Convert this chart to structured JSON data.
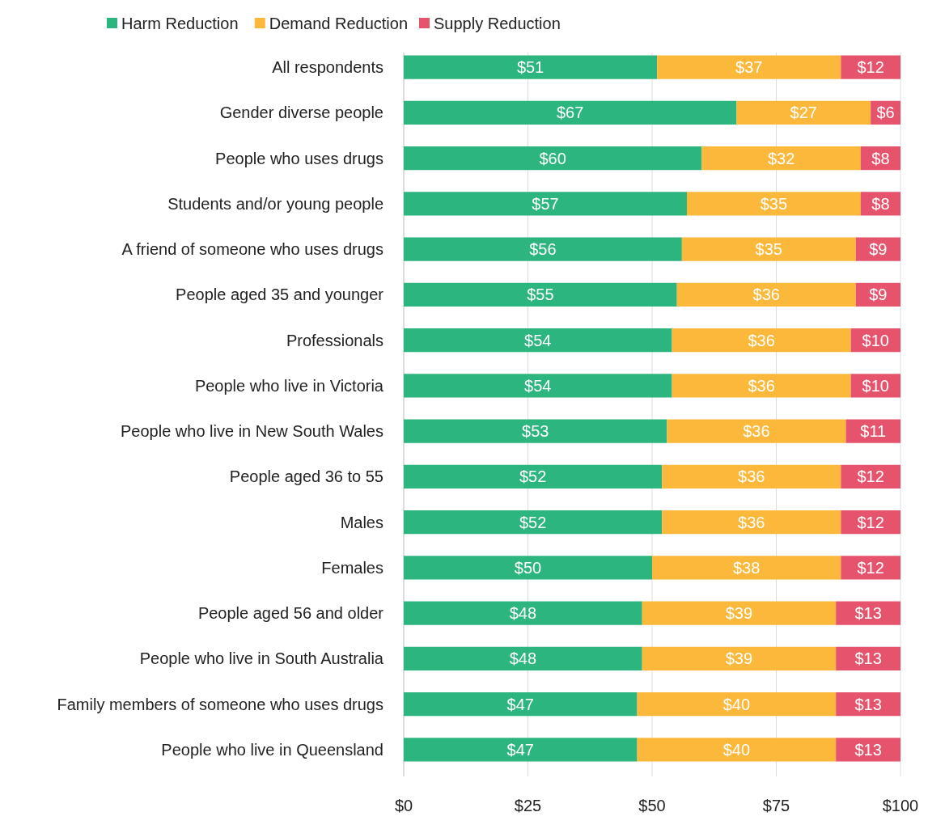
{
  "chart_data": {
    "type": "bar",
    "orientation": "horizontal",
    "stacked": true,
    "categories": [
      "All respondents",
      "Gender diverse people",
      "People who uses drugs",
      "Students and/or young people",
      "A friend of someone who uses drugs",
      "People aged 35 and younger",
      "Professionals",
      "People who live in Victoria",
      "People who live in New South Wales",
      "People aged 36 to 55",
      "Males",
      "Females",
      "People aged 56 and older",
      "People who live in South Australia",
      "Family members of someone who uses drugs",
      "People who live in Queensland"
    ],
    "series": [
      {
        "name": "Harm Reduction",
        "color": "#2db57f",
        "values": [
          51,
          67,
          60,
          57,
          56,
          55,
          54,
          54,
          53,
          52,
          52,
          50,
          48,
          48,
          47,
          47
        ],
        "value_labels": [
          "$51",
          "$67",
          "$60",
          "$57",
          "$56",
          "$55",
          "$54",
          "$54",
          "$53",
          "$52",
          "$52",
          "$50",
          "$48",
          "$48",
          "$47",
          "$47"
        ]
      },
      {
        "name": "Demand Reduction",
        "color": "#fbb83b",
        "values": [
          37,
          27,
          32,
          35,
          35,
          36,
          36,
          36,
          36,
          36,
          36,
          38,
          39,
          39,
          40,
          40
        ],
        "value_labels": [
          "$37",
          "$27",
          "$32",
          "$35",
          "$35",
          "$36",
          "$36",
          "$36",
          "$36",
          "$36",
          "$36",
          "$38",
          "$39",
          "$39",
          "$40",
          "$40"
        ]
      },
      {
        "name": "Supply Reduction",
        "color": "#e5546c",
        "values": [
          12,
          6,
          8,
          8,
          9,
          9,
          10,
          10,
          11,
          12,
          12,
          12,
          13,
          13,
          13,
          13
        ],
        "value_labels": [
          "$12",
          "$6",
          "$8",
          "$8",
          "$9",
          "$9",
          "$10",
          "$10",
          "$11",
          "$12",
          "$12",
          "$12",
          "$13",
          "$13",
          "$13",
          "$13"
        ]
      }
    ],
    "xlim": [
      0,
      100
    ],
    "xticks": [
      {
        "value": 0,
        "label": "$0"
      },
      {
        "value": 25,
        "label": "$25"
      },
      {
        "value": 50,
        "label": "$50"
      },
      {
        "value": 75,
        "label": "$75"
      },
      {
        "value": 100,
        "label": "$100"
      }
    ],
    "grid": "x",
    "legend": "top"
  }
}
